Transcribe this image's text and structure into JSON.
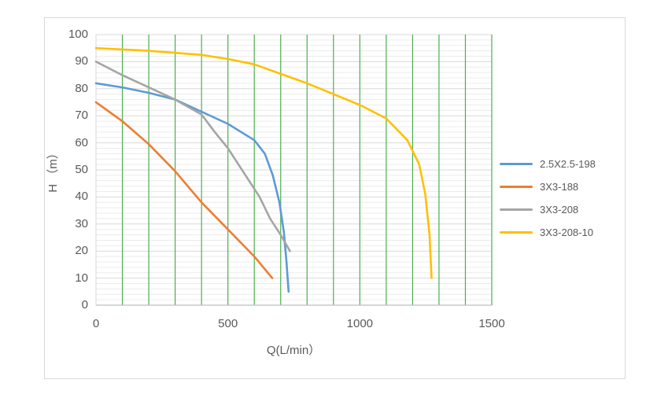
{
  "chart_data": {
    "type": "line",
    "title": "",
    "xlabel": "Q(L/min）",
    "ylabel": "H （m）",
    "xlim": [
      0,
      1500
    ],
    "ylim": [
      0,
      100
    ],
    "x_ticks": [
      0,
      500,
      1000,
      1500
    ],
    "y_ticks": [
      0,
      10,
      20,
      30,
      40,
      50,
      60,
      70,
      80,
      90,
      100
    ],
    "x_grid_interval": 100,
    "y_minor_interval": 2,
    "y_major_interval": 10,
    "grid_on": true,
    "legend_position": "right",
    "series": [
      {
        "name": "2.5X2.5-198",
        "color": "#5B9BD5",
        "points": [
          [
            0,
            82
          ],
          [
            100,
            80.5
          ],
          [
            200,
            78.5
          ],
          [
            300,
            76
          ],
          [
            400,
            71.5
          ],
          [
            500,
            67
          ],
          [
            600,
            61
          ],
          [
            640,
            56
          ],
          [
            670,
            48
          ],
          [
            695,
            38
          ],
          [
            712,
            27
          ],
          [
            722,
            16
          ],
          [
            730,
            5
          ]
        ]
      },
      {
        "name": "3X3-188",
        "color": "#ED7D31",
        "points": [
          [
            0,
            75
          ],
          [
            100,
            68
          ],
          [
            200,
            59.5
          ],
          [
            300,
            49.5
          ],
          [
            400,
            38
          ],
          [
            500,
            28
          ],
          [
            600,
            18
          ],
          [
            668,
            10
          ]
        ]
      },
      {
        "name": "3X3-208",
        "color": "#A5A5A5",
        "points": [
          [
            0,
            90
          ],
          [
            100,
            85
          ],
          [
            200,
            80.5
          ],
          [
            300,
            76
          ],
          [
            400,
            70.5
          ],
          [
            450,
            64
          ],
          [
            500,
            58
          ],
          [
            560,
            49
          ],
          [
            620,
            40
          ],
          [
            660,
            32
          ],
          [
            700,
            26
          ],
          [
            735,
            20
          ]
        ]
      },
      {
        "name": "3X3-208-10",
        "color": "#FFC000",
        "points": [
          [
            0,
            95
          ],
          [
            200,
            94
          ],
          [
            400,
            92.5
          ],
          [
            500,
            91
          ],
          [
            600,
            89
          ],
          [
            700,
            85.5
          ],
          [
            800,
            82
          ],
          [
            900,
            78
          ],
          [
            1000,
            74
          ],
          [
            1100,
            69
          ],
          [
            1180,
            61
          ],
          [
            1225,
            52
          ],
          [
            1248,
            41
          ],
          [
            1264,
            26
          ],
          [
            1272,
            10
          ]
        ]
      }
    ]
  },
  "styles": {
    "grid_vertical_color": "#4CAF50",
    "grid_minor_color": "#ECECEC",
    "grid_major_color": "#D9D9D9",
    "plot_border_color": "#D9D9D9",
    "axis_line_color": "#BFBFBF",
    "frame_border_color": "#D9D9D9",
    "text_color": "#595959",
    "background": "#FFFFFF"
  }
}
